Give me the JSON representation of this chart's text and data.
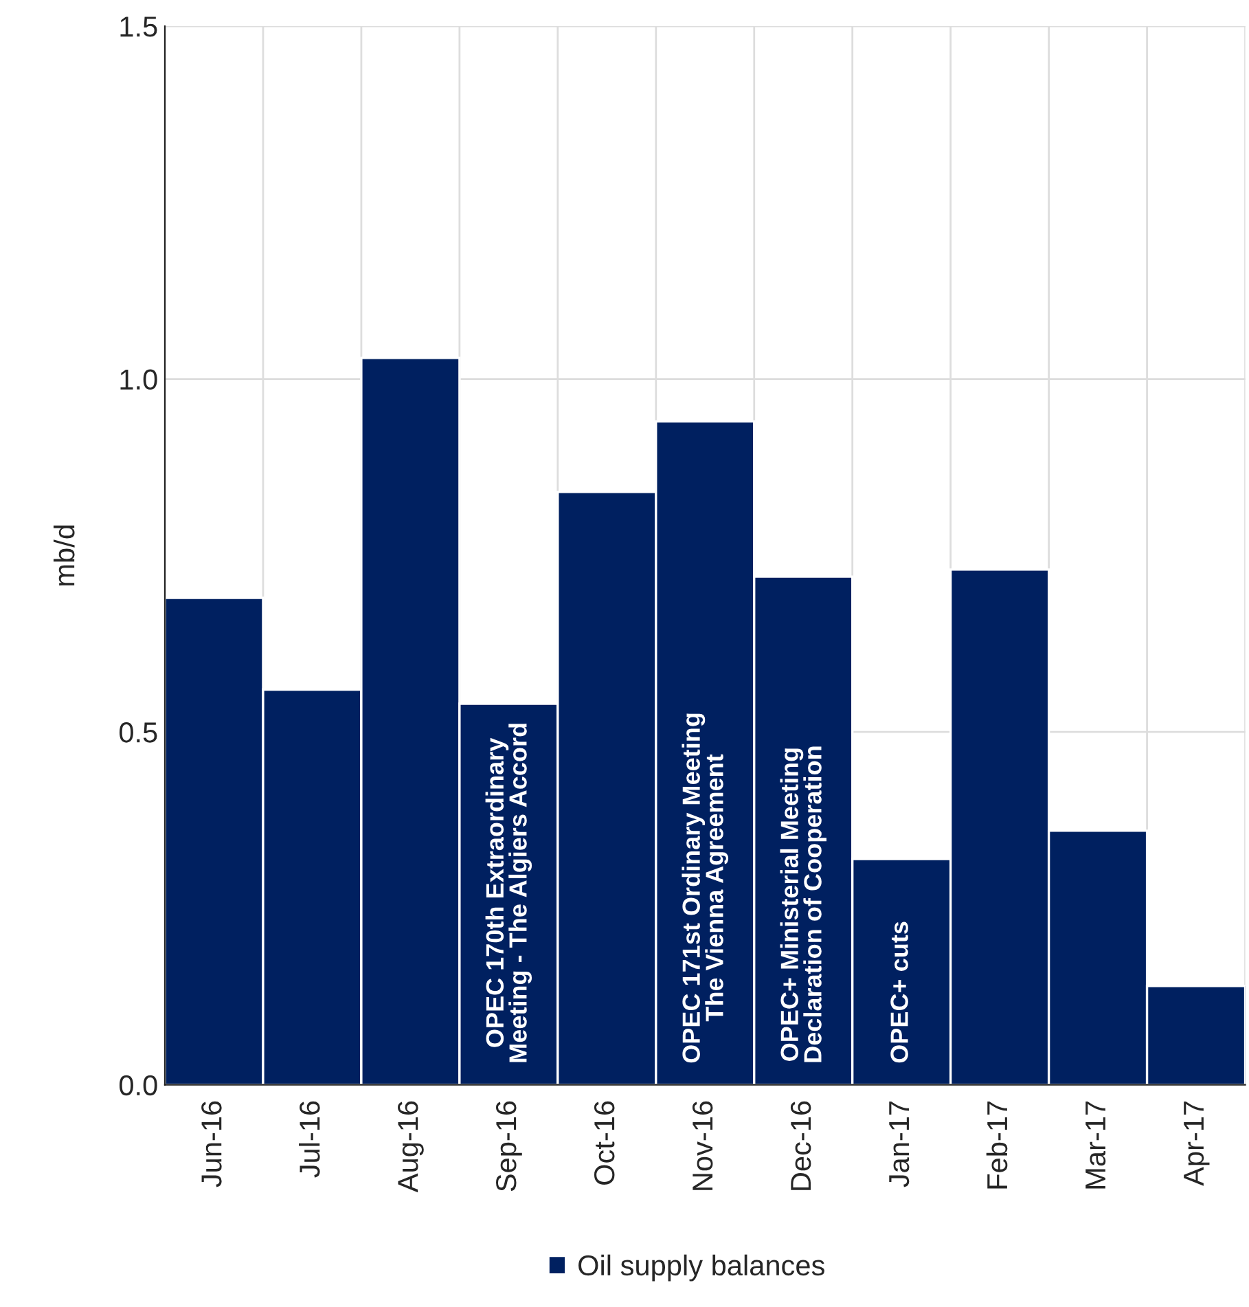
{
  "chart_data": {
    "type": "bar",
    "ylabel": "mb/d",
    "categories": [
      "Jun-16",
      "Jul-16",
      "Aug-16",
      "Sep-16",
      "Oct-16",
      "Nov-16",
      "Dec-16",
      "Jan-17",
      "Feb-17",
      "Mar-17",
      "Apr-17"
    ],
    "series": [
      {
        "name": "Oil supply balances",
        "color": "#002060",
        "values": [
          0.69,
          0.56,
          1.03,
          0.54,
          0.84,
          0.94,
          0.72,
          0.32,
          0.73,
          0.36,
          0.14
        ]
      }
    ],
    "ylim": [
      0,
      1.5
    ],
    "yticks": [
      {
        "value": 0,
        "label": "0.0"
      },
      {
        "value": 0.5,
        "label": "0.5"
      },
      {
        "value": 1.0,
        "label": "1.0"
      },
      {
        "value": 1.5,
        "label": "1.5"
      }
    ],
    "grid": true,
    "legend": "bottom",
    "annotations": [
      "OPEC 170th Extraordinary\nMeeting - The Algiers Accord",
      "OPEC 171st Ordinary Meeting\nThe Vienna Agreement",
      "OPEC+ Ministerial Meeting\nDeclaration of Cooperation",
      "OPEC+ cuts"
    ]
  }
}
